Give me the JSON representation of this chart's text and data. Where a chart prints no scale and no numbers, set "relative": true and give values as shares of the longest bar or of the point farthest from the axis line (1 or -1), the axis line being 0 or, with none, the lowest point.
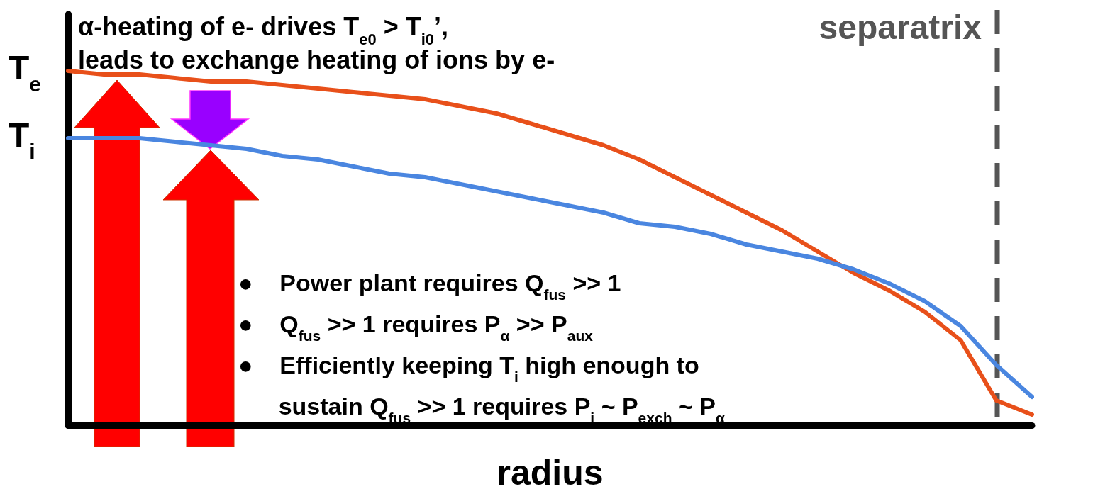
{
  "chart_data": {
    "type": "line",
    "title": "α-heating of e- drives T$_{e0}$ > T$_{i0}$’,",
    "subtitle": "leads to exchange heating of ions by e-",
    "xlabel": "radius",
    "relative": true,
    "categories": [
      null,
      null,
      null,
      null,
      null,
      null,
      null,
      null,
      null,
      null,
      null,
      null,
      null,
      null,
      null,
      null,
      null,
      null,
      null,
      null,
      null,
      null,
      null,
      null,
      null,
      null,
      null,
      null
    ],
    "series": [
      {
        "name": "T$_{e}$",
        "color": "#e8501a",
        "values": [
          1.0,
          0.99,
          0.99,
          0.98,
          0.97,
          0.97,
          0.96,
          0.95,
          0.94,
          0.93,
          0.92,
          0.9,
          0.88,
          0.85,
          0.82,
          0.79,
          0.75,
          0.7,
          0.65,
          0.6,
          0.55,
          0.49,
          0.43,
          0.38,
          0.32,
          0.24,
          0.07,
          0.03
        ]
      },
      {
        "name": "T$_{i}$",
        "color": "#4a86e0",
        "values": [
          0.81,
          0.81,
          0.81,
          0.8,
          0.79,
          0.78,
          0.76,
          0.75,
          0.73,
          0.71,
          0.7,
          0.68,
          0.66,
          0.64,
          0.62,
          0.6,
          0.57,
          0.56,
          0.54,
          0.51,
          0.49,
          0.47,
          0.44,
          0.4,
          0.35,
          0.28,
          0.17,
          0.08
        ]
      }
    ],
    "annotations": [
      "separatrix",
      "●    Power plant requires Q$_{fus}$ >> 1",
      "●    Q$_{fus}$ >> 1 requires P$_{α}$ >> P$_{aux}$",
      "●    Efficiently keeping T$_{i}$ high enough to",
      "      sustain Q$_{fus}$ >> 1 requires P$_{i}$ ~ P$_{exch}$ ~ P$_{α}$"
    ]
  }
}
